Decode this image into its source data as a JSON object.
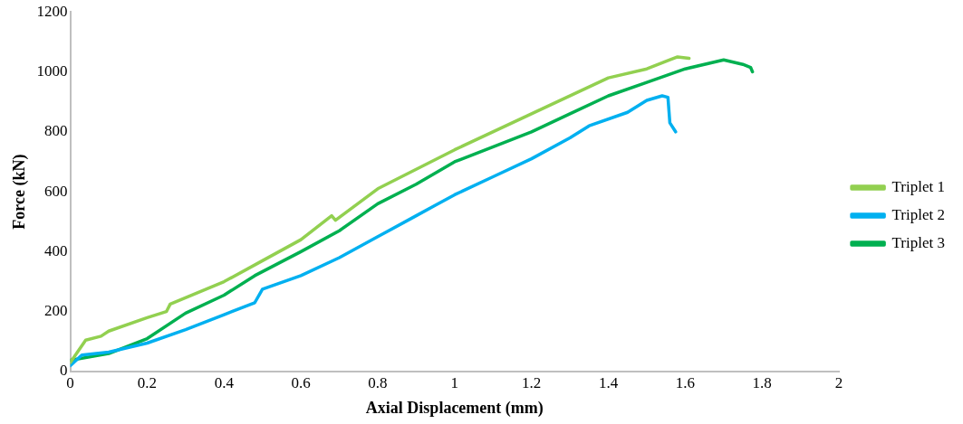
{
  "chart_data": {
    "type": "line",
    "xlabel": "Axial Displacement (mm)",
    "ylabel": "Force (kN)",
    "xlim": [
      0,
      2
    ],
    "xticks": [
      0,
      0.2,
      0.4,
      0.6,
      0.8,
      1,
      1.2,
      1.4,
      1.6,
      1.8,
      2
    ],
    "ylim": [
      0,
      1200
    ],
    "yticks": [
      0,
      200,
      400,
      600,
      800,
      1000,
      1200
    ],
    "grid": false,
    "legend": "right",
    "marker": "none",
    "line_style": "solid",
    "series": [
      {
        "name": "Triplet 1",
        "color": "#92d050",
        "x": [
          0,
          0.04,
          0.08,
          0.1,
          0.2,
          0.25,
          0.26,
          0.4,
          0.5,
          0.6,
          0.68,
          0.69,
          0.8,
          1.0,
          1.2,
          1.4,
          1.5,
          1.56,
          1.58,
          1.61
        ],
        "values": [
          30,
          105,
          118,
          135,
          180,
          200,
          225,
          300,
          370,
          440,
          520,
          505,
          610,
          740,
          860,
          980,
          1010,
          1040,
          1050,
          1045
        ]
      },
      {
        "name": "Triplet 2",
        "color": "#00b0f0",
        "x": [
          0,
          0.03,
          0.1,
          0.2,
          0.3,
          0.4,
          0.48,
          0.5,
          0.6,
          0.7,
          0.8,
          0.9,
          0.95,
          1.0,
          1.1,
          1.2,
          1.3,
          1.35,
          1.45,
          1.5,
          1.54,
          1.555,
          1.56,
          1.575
        ],
        "values": [
          20,
          55,
          65,
          95,
          140,
          190,
          230,
          275,
          320,
          380,
          450,
          520,
          555,
          590,
          650,
          710,
          780,
          820,
          865,
          905,
          920,
          915,
          830,
          800
        ]
      },
      {
        "name": "Triplet 3",
        "color": "#00b050",
        "x": [
          0,
          0.1,
          0.2,
          0.3,
          0.4,
          0.48,
          0.6,
          0.7,
          0.8,
          0.9,
          1.0,
          1.2,
          1.3,
          1.4,
          1.5,
          1.6,
          1.7,
          1.75,
          1.77,
          1.775
        ],
        "values": [
          38,
          60,
          110,
          195,
          255,
          320,
          400,
          470,
          560,
          625,
          700,
          800,
          860,
          920,
          965,
          1010,
          1040,
          1025,
          1015,
          1000
        ]
      }
    ]
  }
}
